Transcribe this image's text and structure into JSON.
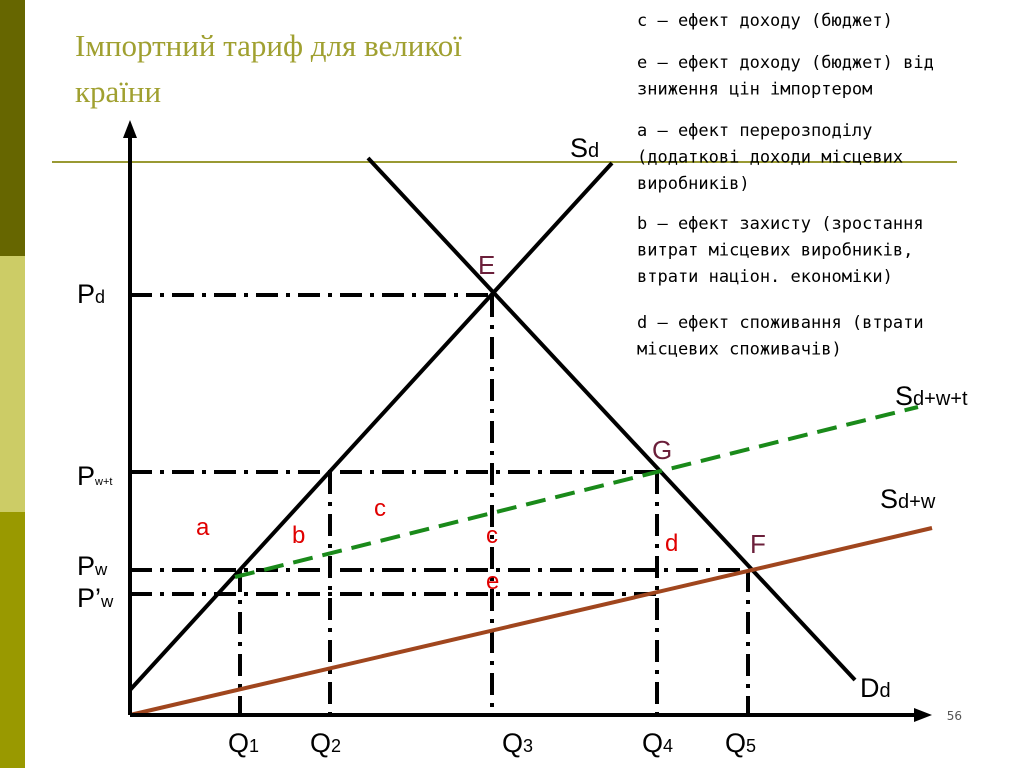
{
  "title": "Імпортний тариф для великої країни",
  "legend": [
    "c – ефект доходу (бюджет)",
    "e – ефект доходу (бюджет) від зниження цін імпортером",
    "a – ефект перерозподілу (додаткові доходи місцевих виробників)",
    "b – ефект захисту (зростання витрат місцевих виробників, втрати націон. економіки)",
    "d – ефект споживання (втрати місцевих споживачів)"
  ],
  "labels": {
    "sd": {
      "main": "S",
      "sub": "d"
    },
    "sdwt": {
      "main": "S",
      "sub": "d+w+t"
    },
    "sdw": {
      "main": "S",
      "sub": "d+w"
    },
    "dd": {
      "main": "D",
      "sub": "d"
    },
    "pd": {
      "main": "P",
      "sub": "d"
    },
    "pwt": {
      "main": "P",
      "sub": "w+t"
    },
    "pw": {
      "main": "P",
      "sub": "w"
    },
    "ppw": {
      "main": "P’",
      "sub": "w"
    },
    "q1": {
      "main": "Q",
      "sub": "1"
    },
    "q2": {
      "main": "Q",
      "sub": "2"
    },
    "q3": {
      "main": "Q",
      "sub": "3"
    },
    "q4": {
      "main": "Q",
      "sub": "4"
    },
    "q5": {
      "main": "Q",
      "sub": "5"
    }
  },
  "points": {
    "e": "E",
    "g": "G",
    "f": "F"
  },
  "areas": {
    "a": "a",
    "b": "b",
    "c1": "c",
    "c2": "c",
    "d": "d",
    "e": "e"
  },
  "page_number": "56"
}
